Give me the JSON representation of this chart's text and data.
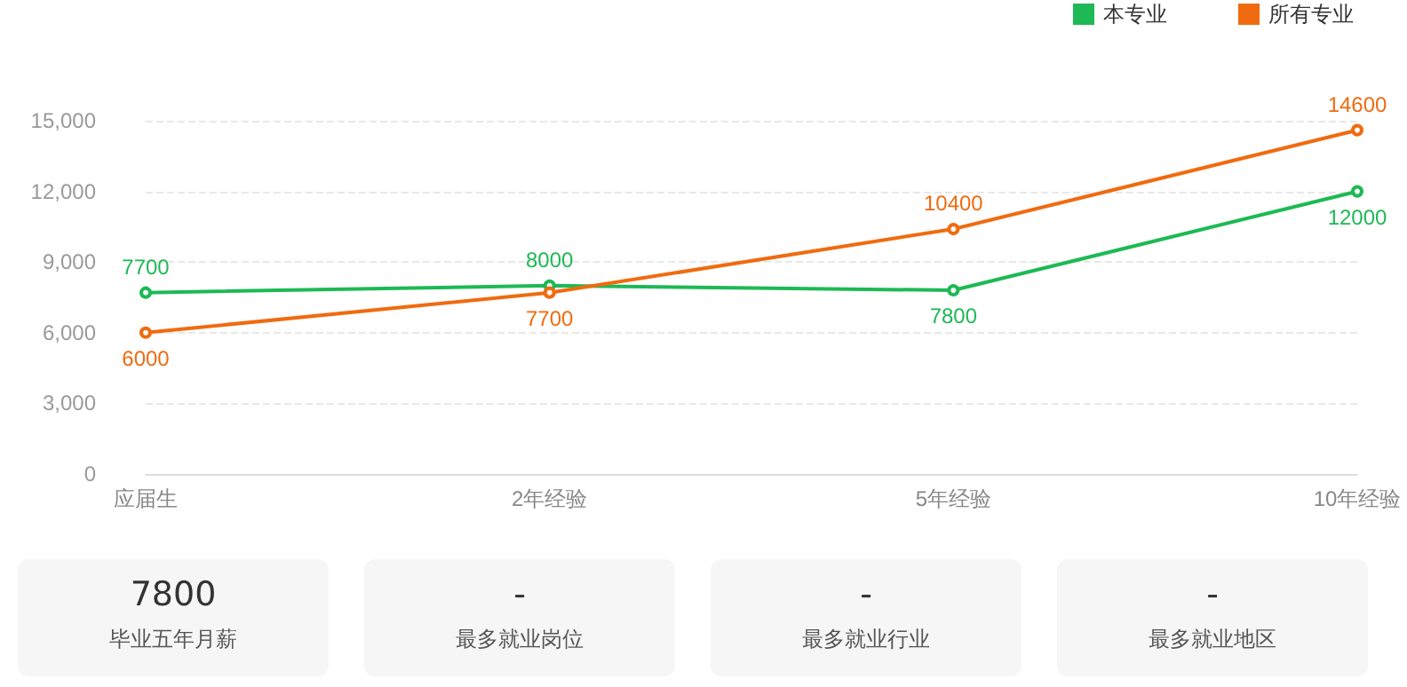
{
  "chart_data": [
    {
      "type": "line",
      "categories": [
        "应届生",
        "2年经验",
        "5年经验",
        "10年经验"
      ],
      "series": [
        {
          "name": "本专业",
          "color": "#1db954",
          "values": [
            7700,
            8000,
            7800,
            12000
          ]
        },
        {
          "name": "所有专业",
          "color": "#f06b0f",
          "values": [
            6000,
            7700,
            10400,
            14600
          ]
        }
      ],
      "ylim": [
        0,
        15000
      ],
      "yticks": [
        0,
        {
          "value": 3000,
          "label": "3,000"
        },
        {
          "value": 6000,
          "label": "6,000"
        },
        {
          "value": 9000,
          "label": "9,000"
        },
        {
          "value": 12000,
          "label": "12,000"
        },
        {
          "value": 15000,
          "label": "15,000"
        }
      ],
      "grid": "y",
      "legend": "top right",
      "marker": "circle",
      "line_style": "solid",
      "data_labels": true
    },
    {
      "type": "other",
      "annotations": [
        "7800",
        "毕业五年月薪",
        "-",
        "最多就业岗位",
        "-",
        "最多就业行业",
        "-",
        "最多就业地区"
      ]
    }
  ]
}
